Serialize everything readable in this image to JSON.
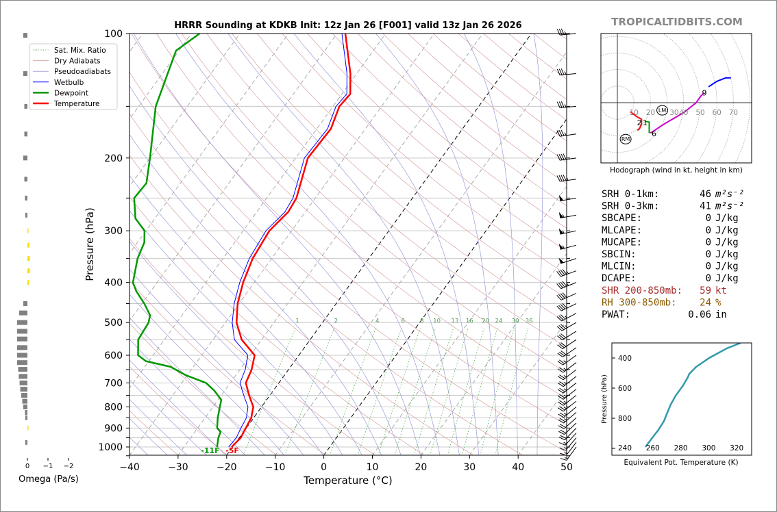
{
  "brand": "TROPICALTIDBITS.COM",
  "chart_data": {
    "type": "skewt",
    "title": "HRRR Sounding at KDKB Init: 12z Jan 26 [F001] valid 13z Jan 26 2026",
    "xlabel": "Temperature (°C)",
    "ylabel": "Pressure (hPa)",
    "xlim": [
      -40,
      50
    ],
    "ylim": [
      1050,
      100
    ],
    "xticks": [
      -40,
      -30,
      -20,
      -10,
      0,
      10,
      20,
      30,
      40,
      50
    ],
    "xtick_labels": [
      "−40",
      "−30",
      "−20",
      "−10",
      "0",
      "10",
      "20",
      "30",
      "40",
      "50"
    ],
    "yticks": [
      100,
      200,
      300,
      400,
      500,
      600,
      700,
      800,
      900,
      1000
    ],
    "ytick_labels": [
      "100",
      "200",
      "300",
      "400",
      "500",
      "600",
      "700",
      "800",
      "900",
      "1000"
    ],
    "legend": {
      "placement": "top-left",
      "entries": [
        {
          "label": "Sat. Mix. Ratio",
          "color": "#4caf50",
          "style": "dotted"
        },
        {
          "label": "Dry Adiabats",
          "color": "#d8a8a8",
          "style": "solid"
        },
        {
          "label": "Pseudoadiabats",
          "color": "#a8a8d8",
          "style": "solid"
        },
        {
          "label": "Wetbulb",
          "color": "#0000ff",
          "style": "solid"
        },
        {
          "label": "Dewpoint",
          "color": "#009900",
          "style": "thick"
        },
        {
          "label": "Temperature",
          "color": "#ff0000",
          "style": "thick"
        }
      ]
    },
    "mixing_ratio_labels": [
      "1",
      "2",
      "4",
      "6",
      "8",
      "10",
      "13",
      "16",
      "20",
      "24",
      "30",
      "36"
    ],
    "mixing_ratios": [
      1,
      2,
      4,
      6,
      8,
      10,
      13,
      16,
      20,
      24,
      30,
      36
    ],
    "temperature": {
      "p": [
        1000,
        950,
        900,
        850,
        800,
        750,
        700,
        650,
        600,
        550,
        500,
        450,
        400,
        350,
        300,
        270,
        250,
        200,
        170,
        150,
        140,
        125,
        100
      ],
      "t": [
        -20.2,
        -19.7,
        -20.1,
        -20.5,
        -21.7,
        -24.3,
        -26.8,
        -27.6,
        -29.1,
        -34.1,
        -37.7,
        -40.3,
        -42.3,
        -43.9,
        -44.6,
        -43.5,
        -43.9,
        -47.5,
        -47.1,
        -48.7,
        -48.3,
        -51.3,
        -58.3
      ]
    },
    "wetbulb": {
      "p": [
        1000,
        950,
        900,
        850,
        800,
        750,
        700,
        650,
        600,
        550,
        500,
        450,
        400,
        350,
        300,
        270,
        250,
        200,
        170,
        150,
        140,
        125,
        100
      ],
      "t": [
        -20.8,
        -20.6,
        -21.1,
        -21.5,
        -22.8,
        -25.4,
        -28.0,
        -28.9,
        -30.5,
        -35.6,
        -38.6,
        -41.0,
        -43.0,
        -44.6,
        -45.3,
        -44.2,
        -44.6,
        -48.2,
        -47.8,
        -49.4,
        -49.0,
        -52.0,
        -59.0
      ]
    },
    "dewpoint": {
      "p": [
        1000,
        950,
        920,
        900,
        850,
        800,
        770,
        730,
        700,
        670,
        640,
        620,
        600,
        550,
        500,
        480,
        450,
        420,
        400,
        350,
        320,
        300,
        280,
        250,
        230,
        200,
        150,
        110,
        100
      ],
      "t": [
        -23.2,
        -24.3,
        -24.7,
        -26.0,
        -27.4,
        -28.6,
        -29.3,
        -32.2,
        -35.0,
        -40.4,
        -44.7,
        -50.6,
        -53.1,
        -55.4,
        -55.8,
        -56.6,
        -59.5,
        -63.0,
        -65.0,
        -67.6,
        -68.6,
        -70.3,
        -74.0,
        -77.3,
        -77.0,
        -80.0,
        -86.5,
        -90.6,
        -88.3
      ]
    },
    "surface_labels": {
      "dewpoint": "-11F",
      "temperature": "-5F"
    },
    "wind_barbs": {
      "p": [
        100,
        125,
        150,
        175,
        200,
        225,
        250,
        275,
        300,
        325,
        350,
        375,
        400,
        425,
        450,
        475,
        500,
        525,
        550,
        575,
        600,
        625,
        650,
        675,
        700,
        725,
        750,
        775,
        800,
        825,
        850,
        875,
        900,
        925,
        950,
        975,
        1000
      ],
      "dir": [
        265,
        265,
        265,
        262,
        262,
        262,
        260,
        260,
        258,
        255,
        252,
        250,
        248,
        246,
        244,
        242,
        240,
        238,
        236,
        235,
        234,
        233,
        232,
        232,
        232,
        232,
        232,
        232,
        230,
        230,
        228,
        226,
        224,
        222,
        220,
        218,
        216
      ],
      "speed_kt": [
        35,
        35,
        35,
        35,
        40,
        45,
        50,
        55,
        55,
        55,
        50,
        45,
        45,
        40,
        40,
        35,
        35,
        30,
        30,
        30,
        25,
        25,
        25,
        25,
        25,
        25,
        25,
        25,
        25,
        25,
        20,
        20,
        20,
        15,
        15,
        15,
        15
      ]
    },
    "omega": {
      "xlabel": "Omega (Pa/s)",
      "xticks": [
        0,
        -1,
        -2
      ],
      "xtick_labels": [
        "0",
        "−1",
        "−2"
      ],
      "p": [
        101,
        125,
        150,
        175,
        200,
        225,
        250,
        275,
        300,
        325,
        350,
        375,
        400,
        450,
        474,
        500,
        525,
        548,
        575,
        600,
        625,
        649,
        675,
        700,
        725,
        750,
        775,
        800,
        825,
        850,
        900,
        975
      ],
      "values": [
        0.2,
        0.2,
        0.15,
        0.15,
        0.2,
        0.15,
        0.12,
        0.1,
        -0.03,
        -0.1,
        -0.12,
        -0.12,
        -0.08,
        0.2,
        0.4,
        0.5,
        0.5,
        0.5,
        0.5,
        0.5,
        0.5,
        0.45,
        0.42,
        0.38,
        0.35,
        0.3,
        0.25,
        0.2,
        0.12,
        0.1,
        -0.03,
        0.1
      ],
      "positive_color": "#808080",
      "negative_color": "#ffe000"
    },
    "hodograph": {
      "caption": "Hodograph (wind in kt, height in km)",
      "ring_labels": [
        "10",
        "20",
        "30",
        "40",
        "50",
        "60",
        "70"
      ],
      "segments": [
        {
          "color": "#ff0000",
          "u": [
            7.9,
            11.5,
            14.6,
            14.6,
            13.3,
            12.1
          ],
          "v": [
            -5.4,
            -8.3,
            -10.0,
            -12.9,
            -15.8,
            -16.7
          ]
        },
        {
          "color": "#009900",
          "u": [
            16.7,
            19.2,
            19.2,
            20.0
          ],
          "v": [
            -11.3,
            -11.7,
            -17.9,
            -18.3
          ]
        },
        {
          "color": "#cc00cc",
          "u": [
            20.0,
            28.0,
            40.0,
            47.5,
            50.0,
            52.1
          ],
          "v": [
            -18.3,
            -13.0,
            -6.0,
            0.0,
            3.5,
            6.0
          ]
        },
        {
          "color": "#0000ff",
          "u": [
            55.0,
            60.0,
            65.4,
            68.5
          ],
          "v": [
            9.6,
            12.9,
            15.0,
            15.0
          ]
        }
      ],
      "height_labels": [
        {
          "text": "2",
          "u": 13.3,
          "v": -12.0
        },
        {
          "text": "1",
          "u": 16.7,
          "v": -12.0
        },
        {
          "text": "6",
          "u": 22.1,
          "v": -18.5
        },
        {
          "text": "9",
          "u": 52.5,
          "v": 6.0
        }
      ],
      "lm": {
        "text": "LM",
        "u": 27.1,
        "v": -4.6
      },
      "rm": {
        "text": "RM",
        "u": 5.0,
        "v": -22.0
      }
    },
    "theta_e": {
      "xlabel": "Equivalent Pot. Temperature (K)",
      "ylabel": "Pressure (hPa)",
      "xticks": [
        240,
        260,
        280,
        300,
        320
      ],
      "xtick_labels": [
        "240",
        "260",
        "280",
        "300",
        "320"
      ],
      "yticks": [
        400,
        600,
        800
      ],
      "ytick_labels": [
        "400",
        "600",
        "800"
      ],
      "xlim": [
        237,
        330
      ],
      "ylim": [
        1000,
        300
      ],
      "p": [
        991,
        936,
        877,
        818,
        773,
        709,
        650,
        582,
        527,
        505,
        459,
        400,
        336,
        300
      ],
      "theta_e": [
        254.7,
        259.1,
        264.0,
        268.0,
        269.9,
        272.8,
        276.3,
        281.7,
        285.1,
        286.1,
        291.0,
        300.3,
        313.0,
        322.8
      ],
      "color": "#3399aa"
    }
  },
  "indices": [
    {
      "label": "SRH 0-1km:",
      "value": "46",
      "unit": "m²s⁻²",
      "color": "#000000"
    },
    {
      "label": "SRH 0-3km:",
      "value": "41",
      "unit": "m²s⁻²",
      "color": "#000000"
    },
    {
      "label": "SBCAPE:",
      "value": "0",
      "unit": "J/kg",
      "color": "#000000"
    },
    {
      "label": "MLCAPE:",
      "value": "0",
      "unit": "J/kg",
      "color": "#000000"
    },
    {
      "label": "MUCAPE:",
      "value": "0",
      "unit": "J/kg",
      "color": "#000000"
    },
    {
      "label": "SBCIN:",
      "value": "0",
      "unit": "J/kg",
      "color": "#000000"
    },
    {
      "label": "MLCIN:",
      "value": "0",
      "unit": "J/kg",
      "color": "#000000"
    },
    {
      "label": "DCAPE:",
      "value": "0",
      "unit": "J/kg",
      "color": "#000000"
    },
    {
      "label": "SHR 200-850mb:",
      "value": "59",
      "unit": "kt",
      "color": "#a52a2a"
    },
    {
      "label": "RH 300-850mb:",
      "value": "24",
      "unit": "%",
      "color": "#8b5a00"
    },
    {
      "label": "PWAT:",
      "value": "0.06",
      "unit": "in",
      "color": "#000000"
    }
  ]
}
